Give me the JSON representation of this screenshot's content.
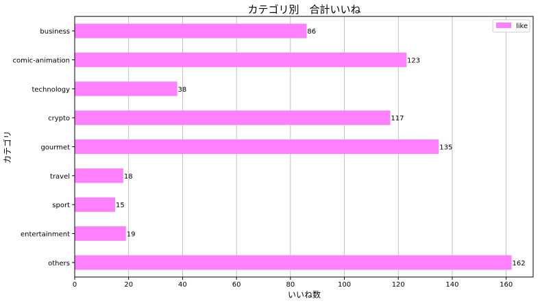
{
  "chart_data": {
    "type": "bar",
    "orientation": "horizontal",
    "title": "カテゴリ別　合計いいね",
    "xlabel": "いいね数",
    "ylabel": "カテゴリ",
    "categories": [
      "business",
      "comic-animation",
      "technology",
      "crypto",
      "gourmet",
      "travel",
      "sport",
      "entertainment",
      "others"
    ],
    "series": [
      {
        "name": "like",
        "values": [
          86,
          123,
          38,
          117,
          135,
          18,
          15,
          19,
          162
        ]
      }
    ],
    "xlim": [
      0,
      170
    ],
    "xticks": [
      0,
      20,
      40,
      60,
      80,
      100,
      120,
      140,
      160
    ],
    "grid": "vertical",
    "legend_position": "top-right",
    "bar_color": "#ff80ff"
  }
}
